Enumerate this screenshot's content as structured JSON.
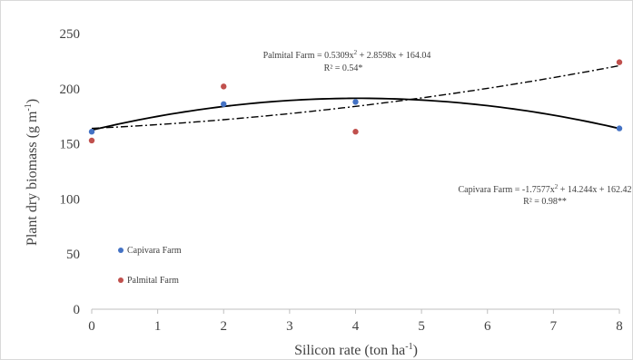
{
  "chart_data": {
    "type": "scatter",
    "xlabel_main": "Silicon rate (ton ha",
    "xlabel_sup": "-1",
    "xlabel_end": ")",
    "ylabel_main": "Plant dry biomass (g m",
    "ylabel_sup": "-1",
    "ylabel_end": ")",
    "xlim": [
      0,
      8
    ],
    "ylim": [
      0,
      250
    ],
    "x_ticks": [
      "0",
      "1",
      "2",
      "3",
      "4",
      "5",
      "6",
      "7",
      "8"
    ],
    "y_ticks": [
      "0",
      "50",
      "100",
      "150",
      "200",
      "250"
    ],
    "grid": false,
    "legend_position": "bottom-left",
    "series": [
      {
        "name": "Capivara Farm",
        "color": "#4472c4",
        "x": [
          0,
          2,
          4,
          8
        ],
        "y": [
          161,
          186,
          188,
          164
        ],
        "fit": {
          "a": -1.7577,
          "b": 14.244,
          "c": 162.42,
          "style": "solid"
        },
        "eq_main": "Capivara Farm = -1.7577x",
        "eq_sup": "2",
        "eq_rest": " + 14.244x  + 162.42",
        "r2": "R² = 0.98**"
      },
      {
        "name": "Palmital Farm",
        "color": "#c0504d",
        "x": [
          0,
          2,
          4,
          8
        ],
        "y": [
          153,
          202,
          161,
          224
        ],
        "fit": {
          "a": 0.5309,
          "b": 2.8598,
          "c": 164.04,
          "style": "dashdot"
        },
        "eq_main": "Palmital  Farm = 0.5309x",
        "eq_sup": "2",
        "eq_rest": "  + 2.8598x  + 164.04",
        "r2": "R² = 0.54*"
      }
    ]
  }
}
